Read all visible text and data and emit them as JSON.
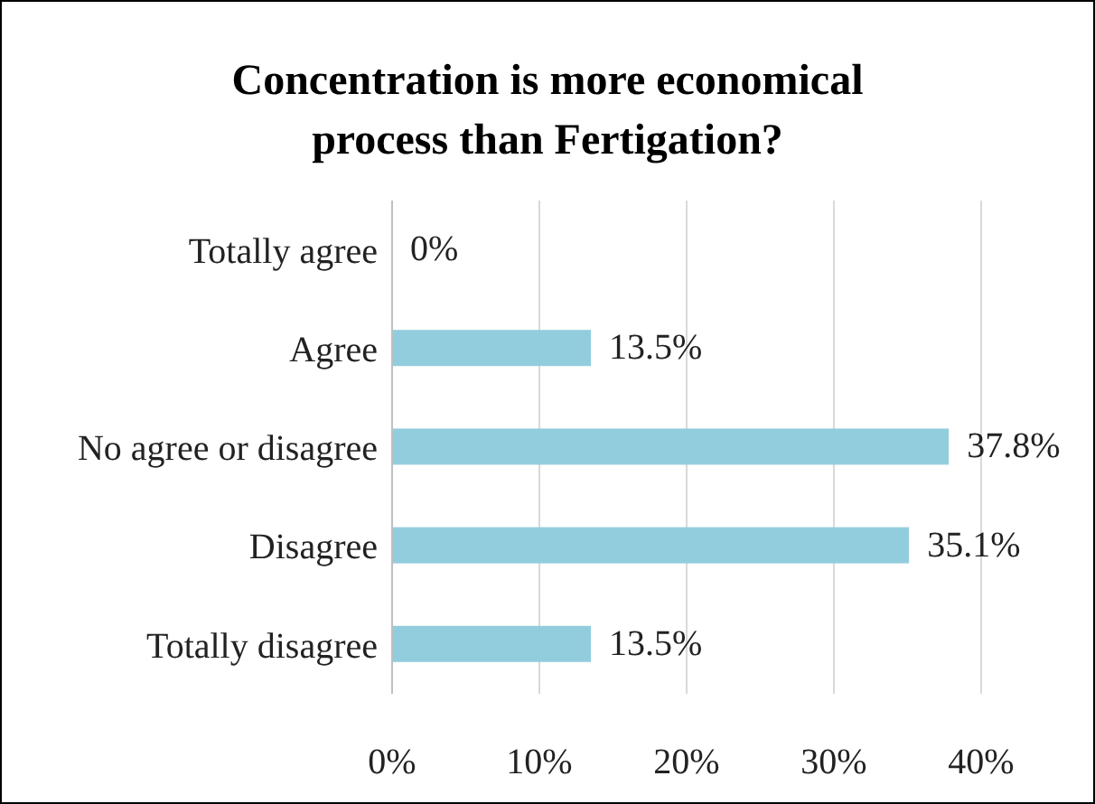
{
  "chart_data": {
    "type": "bar",
    "orientation": "horizontal",
    "title": "Concentration is more economical process than Fertigation?",
    "categories": [
      "Totally agree",
      "Agree",
      "No agree or disagree",
      "Disagree",
      "Totally disagree"
    ],
    "values": [
      0,
      13.5,
      37.8,
      35.1,
      13.5
    ],
    "value_labels": [
      "0%",
      "13.5%",
      "37.8%",
      "35.1%",
      "13.5%"
    ],
    "color": "#92cddd",
    "xlim": [
      0,
      40
    ],
    "xticks": [
      {
        "value": 0,
        "label": "0%"
      },
      {
        "value": 10,
        "label": "10%"
      },
      {
        "value": 20,
        "label": "20%"
      },
      {
        "value": 30,
        "label": "30%"
      },
      {
        "value": 40,
        "label": "40%"
      }
    ],
    "grid": "x"
  }
}
